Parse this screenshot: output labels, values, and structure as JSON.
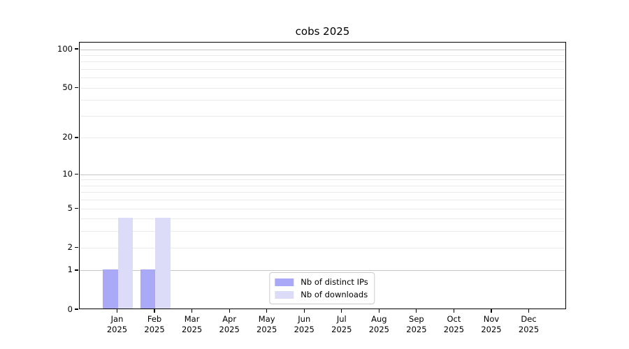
{
  "chart_data": {
    "type": "bar",
    "title": "cobs 2025",
    "categories": [
      "Jan 2025",
      "Feb 2025",
      "Mar 2025",
      "Apr 2025",
      "May 2025",
      "Jun 2025",
      "Jul 2025",
      "Aug 2025",
      "Sep 2025",
      "Oct 2025",
      "Nov 2025",
      "Dec 2025"
    ],
    "series": [
      {
        "name": "Nb of distinct IPs",
        "color": "#a9a9f7",
        "values": [
          1,
          1,
          0,
          0,
          0,
          0,
          0,
          0,
          0,
          0,
          0,
          0
        ]
      },
      {
        "name": "Nb of downloads",
        "color": "#dcdcf9",
        "values": [
          4,
          4,
          0,
          0,
          0,
          0,
          0,
          0,
          0,
          0,
          0,
          0
        ]
      }
    ],
    "xlabel": "",
    "ylabel": "",
    "yscale": "log10(1+x)",
    "ylim": [
      0,
      113
    ],
    "yticks": [
      0,
      1,
      2,
      5,
      10,
      20,
      50,
      100
    ],
    "major_gridlines": [
      1,
      10,
      100
    ],
    "minor_gridlines": [
      2,
      3,
      4,
      5,
      6,
      7,
      8,
      9,
      20,
      30,
      40,
      50,
      60,
      70,
      80,
      90
    ],
    "grid": "horizontal",
    "legend_position": "lower center"
  }
}
